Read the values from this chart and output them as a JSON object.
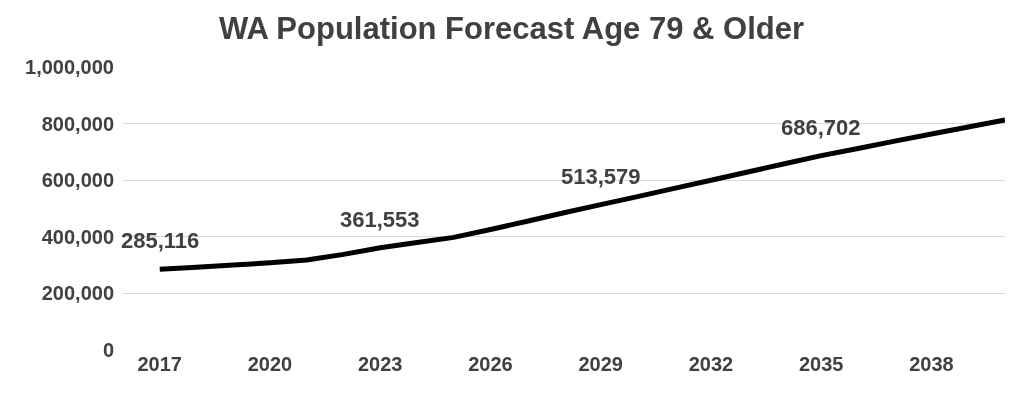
{
  "chart_data": {
    "type": "line",
    "title": "WA Population Forecast Age 79 & Older",
    "categories": [
      "2017",
      null,
      null,
      "2020",
      null,
      null,
      "2023",
      null,
      null,
      "2026",
      null,
      null,
      "2029",
      null,
      null,
      "2032",
      null,
      null,
      "2035",
      null,
      null,
      "2038",
      null,
      null
    ],
    "series": [
      {
        "color": "#000000",
        "values": [
          285116,
          292000,
          300000,
          308000,
          318000,
          338000,
          361553,
          380000,
          398000,
          426000,
          455000,
          485000,
          513579,
          542000,
          571000,
          600000,
          629000,
          658000,
          686702,
          712000,
          738000,
          763000,
          788000,
          813000
        ],
        "value_labels": [
          "285,116",
          null,
          null,
          null,
          null,
          null,
          "361,553",
          null,
          null,
          null,
          null,
          null,
          "513,579",
          null,
          null,
          null,
          null,
          null,
          "686,702",
          null,
          null,
          null,
          null,
          null
        ]
      }
    ],
    "ylim": [
      0,
      1000000
    ],
    "yticks": [
      {
        "value": 0,
        "label": "0"
      },
      {
        "value": 200000,
        "label": "200,000"
      },
      {
        "value": 400000,
        "label": "400,000"
      },
      {
        "value": 600000,
        "label": "600,000"
      },
      {
        "value": 800000,
        "label": "800,000"
      },
      {
        "value": 1000000,
        "label": "1,000,000"
      }
    ],
    "grid": "y",
    "marker": "none",
    "line_style": "solid"
  }
}
